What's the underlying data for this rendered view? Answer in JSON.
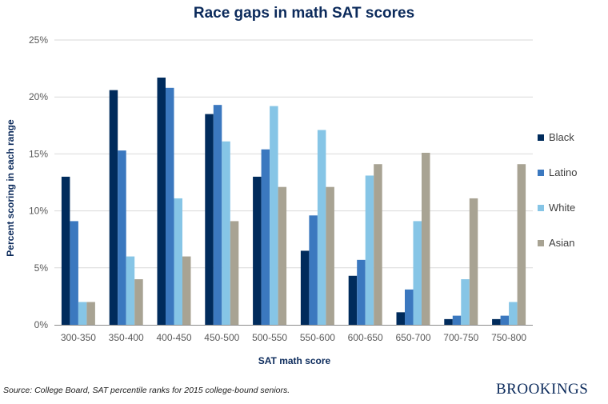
{
  "chart_data": {
    "type": "bar",
    "title": "Race gaps in math SAT scores",
    "xlabel": "SAT math score",
    "ylabel": "Percent scoring in each range",
    "ylim": [
      0,
      25
    ],
    "yticks": [
      "0%",
      "5%",
      "10%",
      "15%",
      "20%",
      "25%"
    ],
    "grid": true,
    "legend_position": "right",
    "categories": [
      "300-350",
      "350-400",
      "400-450",
      "450-500",
      "500-550",
      "550-600",
      "600-650",
      "650-700",
      "700-750",
      "750-800"
    ],
    "series": [
      {
        "name": "Black",
        "color": "#002b5c",
        "values": [
          13.0,
          20.6,
          21.7,
          18.5,
          13.0,
          6.5,
          4.3,
          1.1,
          0.5,
          0.5
        ]
      },
      {
        "name": "Latino",
        "color": "#3b78bf",
        "values": [
          9.1,
          15.3,
          20.8,
          19.3,
          15.4,
          9.6,
          5.7,
          3.1,
          0.8,
          0.8
        ]
      },
      {
        "name": "White",
        "color": "#86c5e6",
        "values": [
          2.0,
          6.0,
          11.1,
          16.1,
          19.2,
          17.1,
          13.1,
          9.1,
          4.0,
          2.0
        ]
      },
      {
        "name": "Asian",
        "color": "#a8a393",
        "values": [
          2.0,
          4.0,
          6.0,
          9.1,
          12.1,
          12.1,
          14.1,
          15.1,
          11.1,
          14.1
        ]
      }
    ]
  },
  "footer": {
    "source": "Source: College Board, SAT percentile ranks for 2015 college-bound seniors.",
    "logo": "BROOKINGS"
  }
}
